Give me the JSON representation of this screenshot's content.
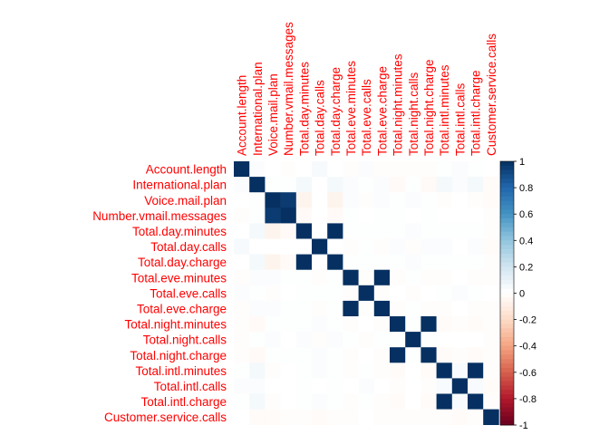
{
  "chart_data": {
    "type": "heatmap",
    "variables": [
      "Account.length",
      "International.plan",
      "Voice.mail.plan",
      "Number.vmail.messages",
      "Total.day.minutes",
      "Total.day.calls",
      "Total.day.charge",
      "Total.eve.minutes",
      "Total.eve.calls",
      "Total.eve.charge",
      "Total.night.minutes",
      "Total.night.calls",
      "Total.night.charge",
      "Total.intl.minutes",
      "Total.intl.calls",
      "Total.intl.charge",
      "Customer.service.calls"
    ],
    "matrix": [
      [
        1.0,
        0.02,
        0.0,
        -0.01,
        0.0,
        0.04,
        0.0,
        -0.01,
        0.02,
        -0.01,
        -0.01,
        -0.01,
        -0.01,
        0.01,
        0.02,
        0.01,
        0.0
      ],
      [
        0.02,
        1.0,
        0.01,
        0.01,
        0.05,
        0.0,
        0.05,
        0.02,
        0.01,
        0.02,
        -0.03,
        0.01,
        -0.03,
        0.05,
        0.02,
        0.05,
        -0.02
      ],
      [
        0.0,
        0.01,
        1.0,
        0.96,
        -0.06,
        0.0,
        -0.06,
        0.02,
        -0.01,
        0.02,
        0.01,
        0.02,
        0.01,
        -0.01,
        0.0,
        -0.01,
        -0.02
      ],
      [
        -0.01,
        0.01,
        0.96,
        1.0,
        -0.03,
        0.0,
        -0.03,
        0.01,
        0.0,
        0.01,
        0.01,
        0.0,
        0.01,
        0.0,
        0.0,
        0.0,
        -0.01
      ],
      [
        0.0,
        0.05,
        -0.06,
        -0.03,
        1.0,
        0.0,
        1.0,
        0.01,
        0.01,
        0.01,
        0.01,
        0.02,
        0.01,
        0.01,
        0.01,
        0.01,
        -0.01
      ],
      [
        0.04,
        0.0,
        0.0,
        0.0,
        0.0,
        1.0,
        0.0,
        -0.01,
        0.01,
        -0.01,
        0.02,
        -0.01,
        0.02,
        0.02,
        0.0,
        0.02,
        -0.02
      ],
      [
        0.0,
        0.05,
        -0.06,
        -0.03,
        1.0,
        0.0,
        1.0,
        0.01,
        0.01,
        0.01,
        0.01,
        0.02,
        0.01,
        0.01,
        0.01,
        0.01,
        -0.01
      ],
      [
        -0.01,
        0.02,
        0.02,
        0.01,
        0.01,
        -0.01,
        0.01,
        1.0,
        -0.01,
        1.0,
        -0.01,
        0.01,
        -0.01,
        -0.01,
        0.0,
        -0.01,
        -0.01
      ],
      [
        0.02,
        0.01,
        -0.01,
        0.0,
        0.01,
        0.01,
        0.01,
        -0.01,
        1.0,
        -0.01,
        0.0,
        -0.01,
        0.0,
        0.01,
        0.02,
        0.01,
        0.0
      ],
      [
        -0.01,
        0.02,
        0.02,
        0.01,
        0.01,
        -0.01,
        0.01,
        1.0,
        -0.01,
        1.0,
        -0.01,
        0.01,
        -0.01,
        -0.01,
        0.0,
        -0.01,
        -0.01
      ],
      [
        -0.01,
        -0.03,
        0.01,
        0.01,
        0.01,
        0.02,
        0.01,
        -0.01,
        0.0,
        -0.01,
        1.0,
        0.01,
        1.0,
        -0.02,
        -0.01,
        -0.02,
        -0.01
      ],
      [
        -0.01,
        0.01,
        0.02,
        0.0,
        0.02,
        -0.01,
        0.02,
        0.01,
        -0.01,
        0.01,
        0.01,
        1.0,
        0.01,
        0.0,
        0.0,
        0.0,
        -0.01
      ],
      [
        -0.01,
        -0.03,
        0.01,
        0.01,
        0.01,
        0.02,
        0.01,
        -0.01,
        0.0,
        -0.01,
        1.0,
        0.01,
        1.0,
        -0.02,
        -0.01,
        -0.02,
        -0.01
      ],
      [
        0.01,
        0.05,
        -0.01,
        0.0,
        0.01,
        0.02,
        0.01,
        -0.01,
        0.01,
        -0.01,
        -0.02,
        0.0,
        -0.02,
        1.0,
        0.03,
        1.0,
        -0.01
      ],
      [
        0.02,
        0.02,
        0.0,
        0.0,
        0.01,
        0.0,
        0.01,
        0.0,
        0.02,
        0.0,
        -0.01,
        0.0,
        -0.01,
        0.03,
        1.0,
        0.03,
        -0.02
      ],
      [
        0.01,
        0.05,
        -0.01,
        0.0,
        0.01,
        0.02,
        0.01,
        -0.01,
        0.01,
        -0.01,
        -0.02,
        0.0,
        -0.02,
        1.0,
        0.03,
        1.0,
        -0.01
      ],
      [
        0.0,
        -0.02,
        -0.02,
        -0.01,
        -0.01,
        -0.02,
        -0.01,
        -0.01,
        0.0,
        -0.01,
        -0.01,
        -0.01,
        -0.01,
        -0.01,
        -0.02,
        -0.01,
        1.0
      ]
    ],
    "colorbar": {
      "range": [
        -1,
        1
      ],
      "ticks": [
        "1",
        "0.8",
        "0.6",
        "0.4",
        "0.2",
        "0",
        "-0.2",
        "-0.4",
        "-0.6",
        "-0.8",
        "-1"
      ]
    },
    "colors": {
      "positive": "#053061",
      "neutral": "#ffffff",
      "negative": "#67001f",
      "label": "#ff0000"
    },
    "grid": false,
    "legend": "right"
  }
}
